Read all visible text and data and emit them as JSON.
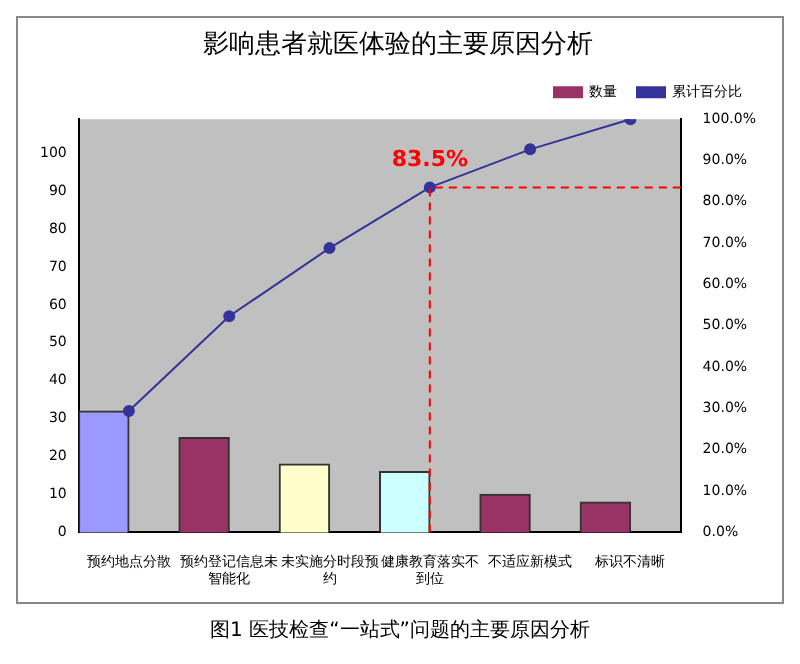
{
  "chart_data": {
    "type": "bar",
    "title": "影响患者就医体验的主要原因分析",
    "categories": [
      "预约地点分散",
      "预约登记信息未智能化",
      "未实施分时段预约",
      "健康教育落实不到位",
      "不适应新模式",
      "标识不清晰"
    ],
    "series": [
      {
        "name": "数量",
        "color": "#993366",
        "colors": [
          "#9999ff",
          "#993366",
          "#ffffcc",
          "#ccffff",
          "#993366",
          "#993366"
        ],
        "values": [
          32,
          25,
          18,
          16,
          10,
          8
        ]
      },
      {
        "name": "累计百分比",
        "type": "line",
        "axis": "y2",
        "color": "#333399",
        "values": [
          29.4,
          52.3,
          68.8,
          83.5,
          92.7,
          100
        ]
      }
    ],
    "ylim": [
      0,
      109
    ],
    "yticks": [
      0,
      10,
      20,
      30,
      40,
      50,
      60,
      70,
      80,
      90,
      100
    ],
    "y2lim": [
      0,
      100
    ],
    "y2ticks": [
      {
        "value": 0,
        "label": "0.0%"
      },
      {
        "value": 10,
        "label": "10.0%"
      },
      {
        "value": 20,
        "label": "20.0%"
      },
      {
        "value": 30,
        "label": "30.0%"
      },
      {
        "value": 40,
        "label": "40.0%"
      },
      {
        "value": 50,
        "label": "50.0%"
      },
      {
        "value": 60,
        "label": "60.0%"
      },
      {
        "value": 70,
        "label": "70.0%"
      },
      {
        "value": 80,
        "label": "80.0%"
      },
      {
        "value": 90,
        "label": "90.0%"
      },
      {
        "value": 100,
        "label": "100.0%"
      }
    ],
    "ref_lines": [
      {
        "axis": "y2",
        "value": 83.5,
        "color": "#ff0000",
        "line_style": "dashed"
      }
    ],
    "annotations": [
      "83.5%",
      "图1 医技检查“一站式”问题的主要原因分析"
    ],
    "grid": false,
    "legend": "top right",
    "marker": "circle",
    "line_style": "solid"
  }
}
